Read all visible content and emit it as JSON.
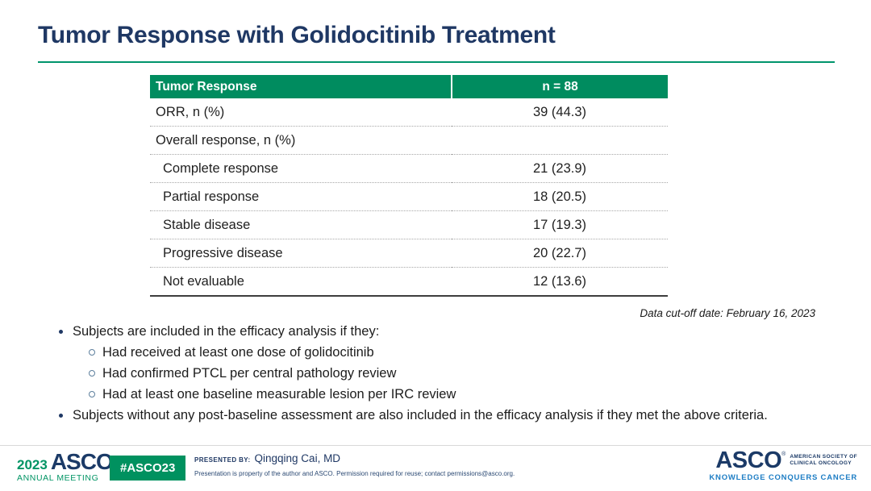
{
  "slide": {
    "title": "Tumor Response with Golidocitinib Treatment",
    "cutoff_note": "Data cut-off date: February 16, 2023"
  },
  "table": {
    "header": {
      "col1": "Tumor Response",
      "col2": "n = 88"
    },
    "rows": [
      {
        "label": "ORR, n (%)",
        "value": "39 (44.3)"
      },
      {
        "label": "Overall response, n (%)",
        "value": ""
      },
      {
        "label": "Complete response",
        "value": "21 (23.9)"
      },
      {
        "label": "Partial response",
        "value": "18 (20.5)"
      },
      {
        "label": "Stable disease",
        "value": "17 (19.3)"
      },
      {
        "label": "Progressive disease",
        "value": "20 (22.7)"
      },
      {
        "label": "Not evaluable",
        "value": "12 (13.6)"
      }
    ]
  },
  "bullets": {
    "item1": "Subjects are included in the efficacy analysis if they:",
    "sub_items": [
      "Had received at least one dose of golidocitinib",
      "Had confirmed PTCL per central pathology review",
      "Had at least one baseline measurable lesion per IRC review"
    ],
    "item2": "Subjects without any post-baseline assessment are also included in the efficacy analysis if they met the above criteria."
  },
  "footer": {
    "left_logo": {
      "year": "2023",
      "name": "ASCO",
      "reg": "®",
      "subtitle": "ANNUAL MEETING"
    },
    "hashtag_badge": "#ASCO23",
    "presented_by_label": "PRESENTED BY:",
    "presenter": "Qingqing Cai, MD",
    "disclaimer": "Presentation is property of the author and ASCO. Permission required for reuse; contact permissions@asco.org.",
    "right_logo": {
      "name": "ASCO",
      "reg": "®",
      "society_line1": "AMERICAN SOCIETY OF",
      "society_line2": "CLINICAL ONCOLOGY",
      "tagline": "KNOWLEDGE CONQUERS CANCER"
    }
  },
  "colors": {
    "title_navy": "#1F3864",
    "table_header_green": "#008C5F",
    "title_rule_green": "#00946B",
    "badge_green": "#00915F",
    "logo_green": "#009464",
    "tagline_blue": "#1D7DC4"
  }
}
